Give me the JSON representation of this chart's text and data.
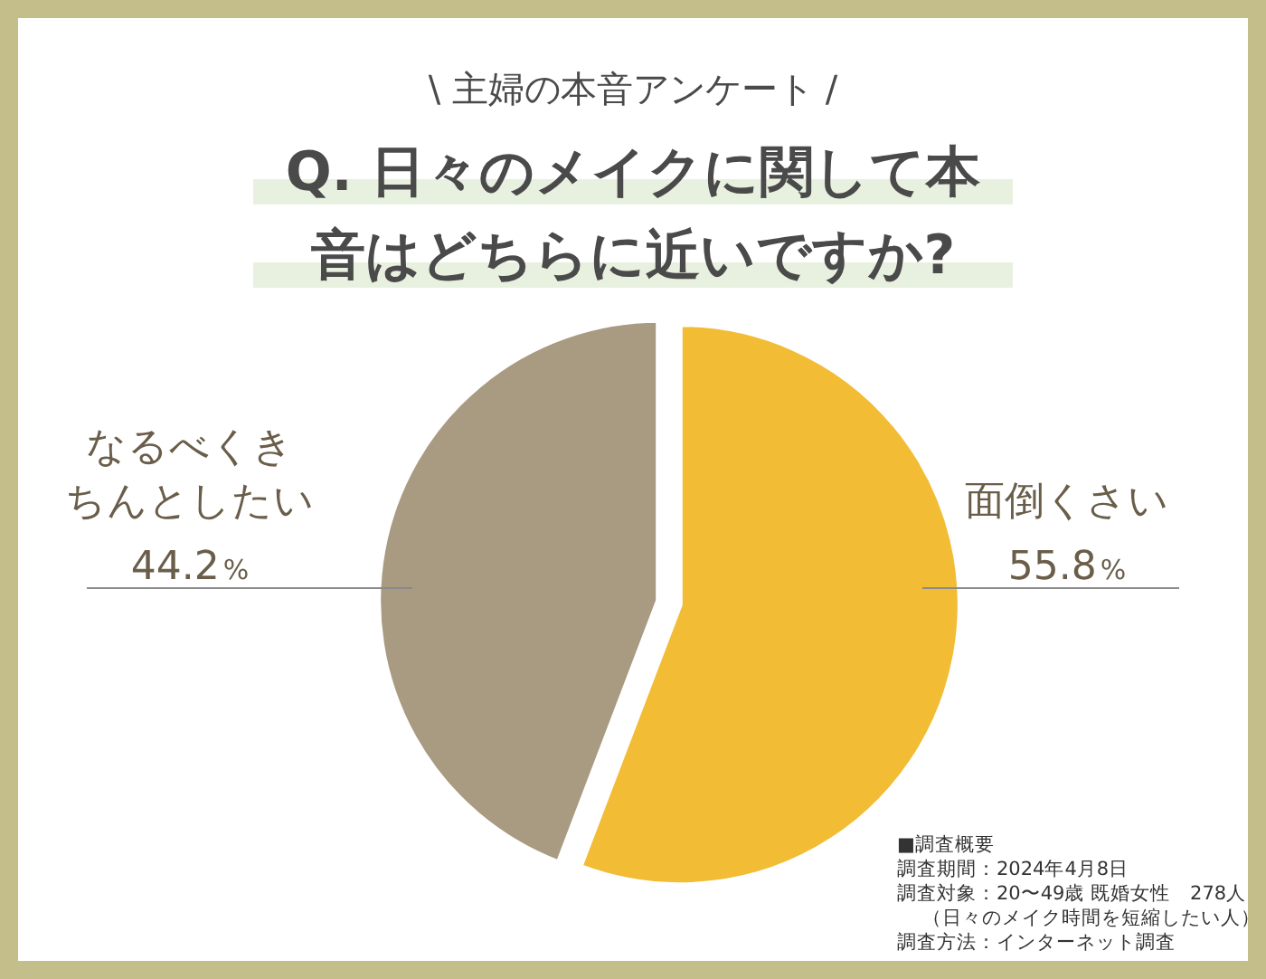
{
  "chart_data": {
    "type": "pie",
    "subtitle": "\\ 主婦の本音アンケート /",
    "title": "Q. 日々のメイクに関して本音はどちらに近いですか?",
    "categories": [
      "面倒くさい",
      "なるべくきちんとしたい"
    ],
    "values": [
      55.8,
      44.2
    ],
    "colors": [
      "#f2bc35",
      "#a99a82"
    ],
    "value_labels": [
      "55.8%",
      "44.2%"
    ],
    "annotations": [
      "■調査概要",
      "調査期間：2024年4月8日",
      "調査対象：20〜49歳 既婚女性　278人",
      "（日々のメイク時間を短縮したい人）",
      "調査方法：インターネット調査"
    ]
  }
}
